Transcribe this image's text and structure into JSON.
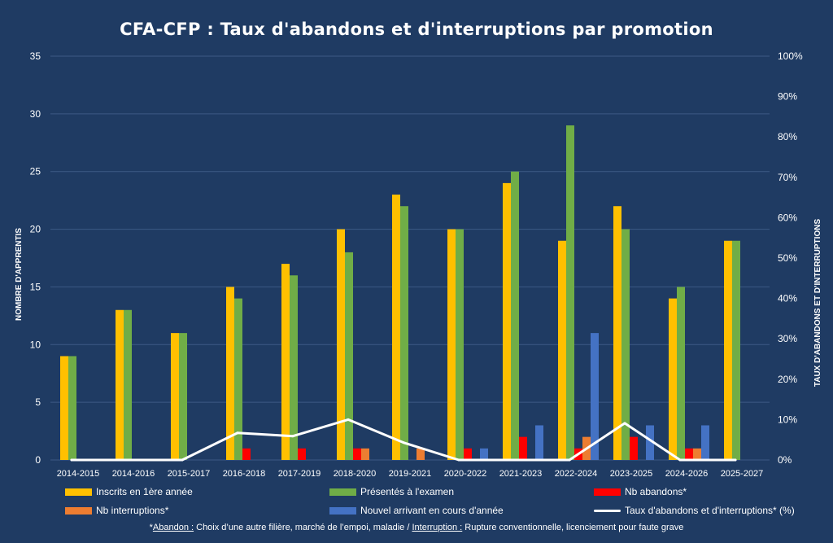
{
  "title": "CFA-CFP : Taux d'abandons et d'interruptions par promotion",
  "footnote": {
    "star": "*",
    "abandon_label": "Abandon :",
    "abandon_text": " Choix d’une autre filière, marché de l’empoi, maladie / ",
    "interruption_label": "Interruption :",
    "interruption_text": " Rupture conventionnelle, licenciement pour faute grave"
  },
  "colors": {
    "background": "#1f3b63",
    "inscrits": "#ffc000",
    "presentes": "#70ad47",
    "abandons": "#ff0000",
    "interruptions": "#ed7d31",
    "nouveaux": "#4472c4",
    "taux": "#ffffff"
  },
  "chart_data": {
    "type": "bar",
    "title": "CFA-CFP : Taux d'abandons et d'interruptions par promotion",
    "xlabel": "",
    "ylabel": "NOMBRE D'APPRENTIS",
    "y2label": "TAUX D'ABANDONS ET D'INTERRUPTIONS",
    "ylim": [
      0,
      35
    ],
    "yticks": [
      "0",
      "5",
      "10",
      "15",
      "20",
      "25",
      "30",
      "35"
    ],
    "y2lim": [
      0,
      100
    ],
    "y2ticks": [
      "0%",
      "10%",
      "20%",
      "30%",
      "40%",
      "50%",
      "60%",
      "70%",
      "80%",
      "90%",
      "100%"
    ],
    "grid": true,
    "legend_position": "bottom",
    "categories": [
      "2014-2015",
      "2014-2016",
      "2015-2017",
      "2016-2018",
      "2017-2019",
      "2018-2020",
      "2019-2021",
      "2020-2022",
      "2021-2023",
      "2022-2024",
      "2023-2025",
      "2024-2026",
      "2025-2027"
    ],
    "series": [
      {
        "name": "Inscrits en 1ère année",
        "key": "inscrits",
        "kind": "bar",
        "axis": "left",
        "values": [
          9,
          13,
          11,
          15,
          17,
          20,
          23,
          20,
          24,
          19,
          22,
          14,
          19
        ]
      },
      {
        "name": "Présentés à l'examen",
        "key": "presentes",
        "kind": "bar",
        "axis": "left",
        "values": [
          9,
          13,
          11,
          14,
          16,
          18,
          22,
          20,
          25,
          29,
          20,
          15,
          19
        ]
      },
      {
        "name": "Nb abandons*",
        "key": "abandons",
        "kind": "bar",
        "axis": "left",
        "values": [
          0,
          0,
          0,
          1,
          1,
          1,
          0,
          1,
          2,
          1,
          2,
          1,
          0
        ]
      },
      {
        "name": "Nb interruptions*",
        "key": "interruptions",
        "kind": "bar",
        "axis": "left",
        "values": [
          0,
          0,
          0,
          0,
          0,
          1,
          1,
          0,
          0,
          2,
          0,
          1,
          0
        ]
      },
      {
        "name": "Nouvel arrivant en cours d'année",
        "key": "nouveaux",
        "kind": "bar",
        "axis": "left",
        "values": [
          0,
          0,
          0,
          0,
          0,
          0,
          0,
          1,
          3,
          11,
          3,
          3,
          0
        ]
      },
      {
        "name": "Taux d'abandons et d'interruptions* (%)",
        "key": "taux",
        "kind": "line",
        "axis": "right",
        "values": [
          0,
          0,
          0,
          6.7,
          5.9,
          10,
          4.3,
          0,
          0,
          0,
          9.1,
          0,
          0
        ]
      }
    ]
  }
}
